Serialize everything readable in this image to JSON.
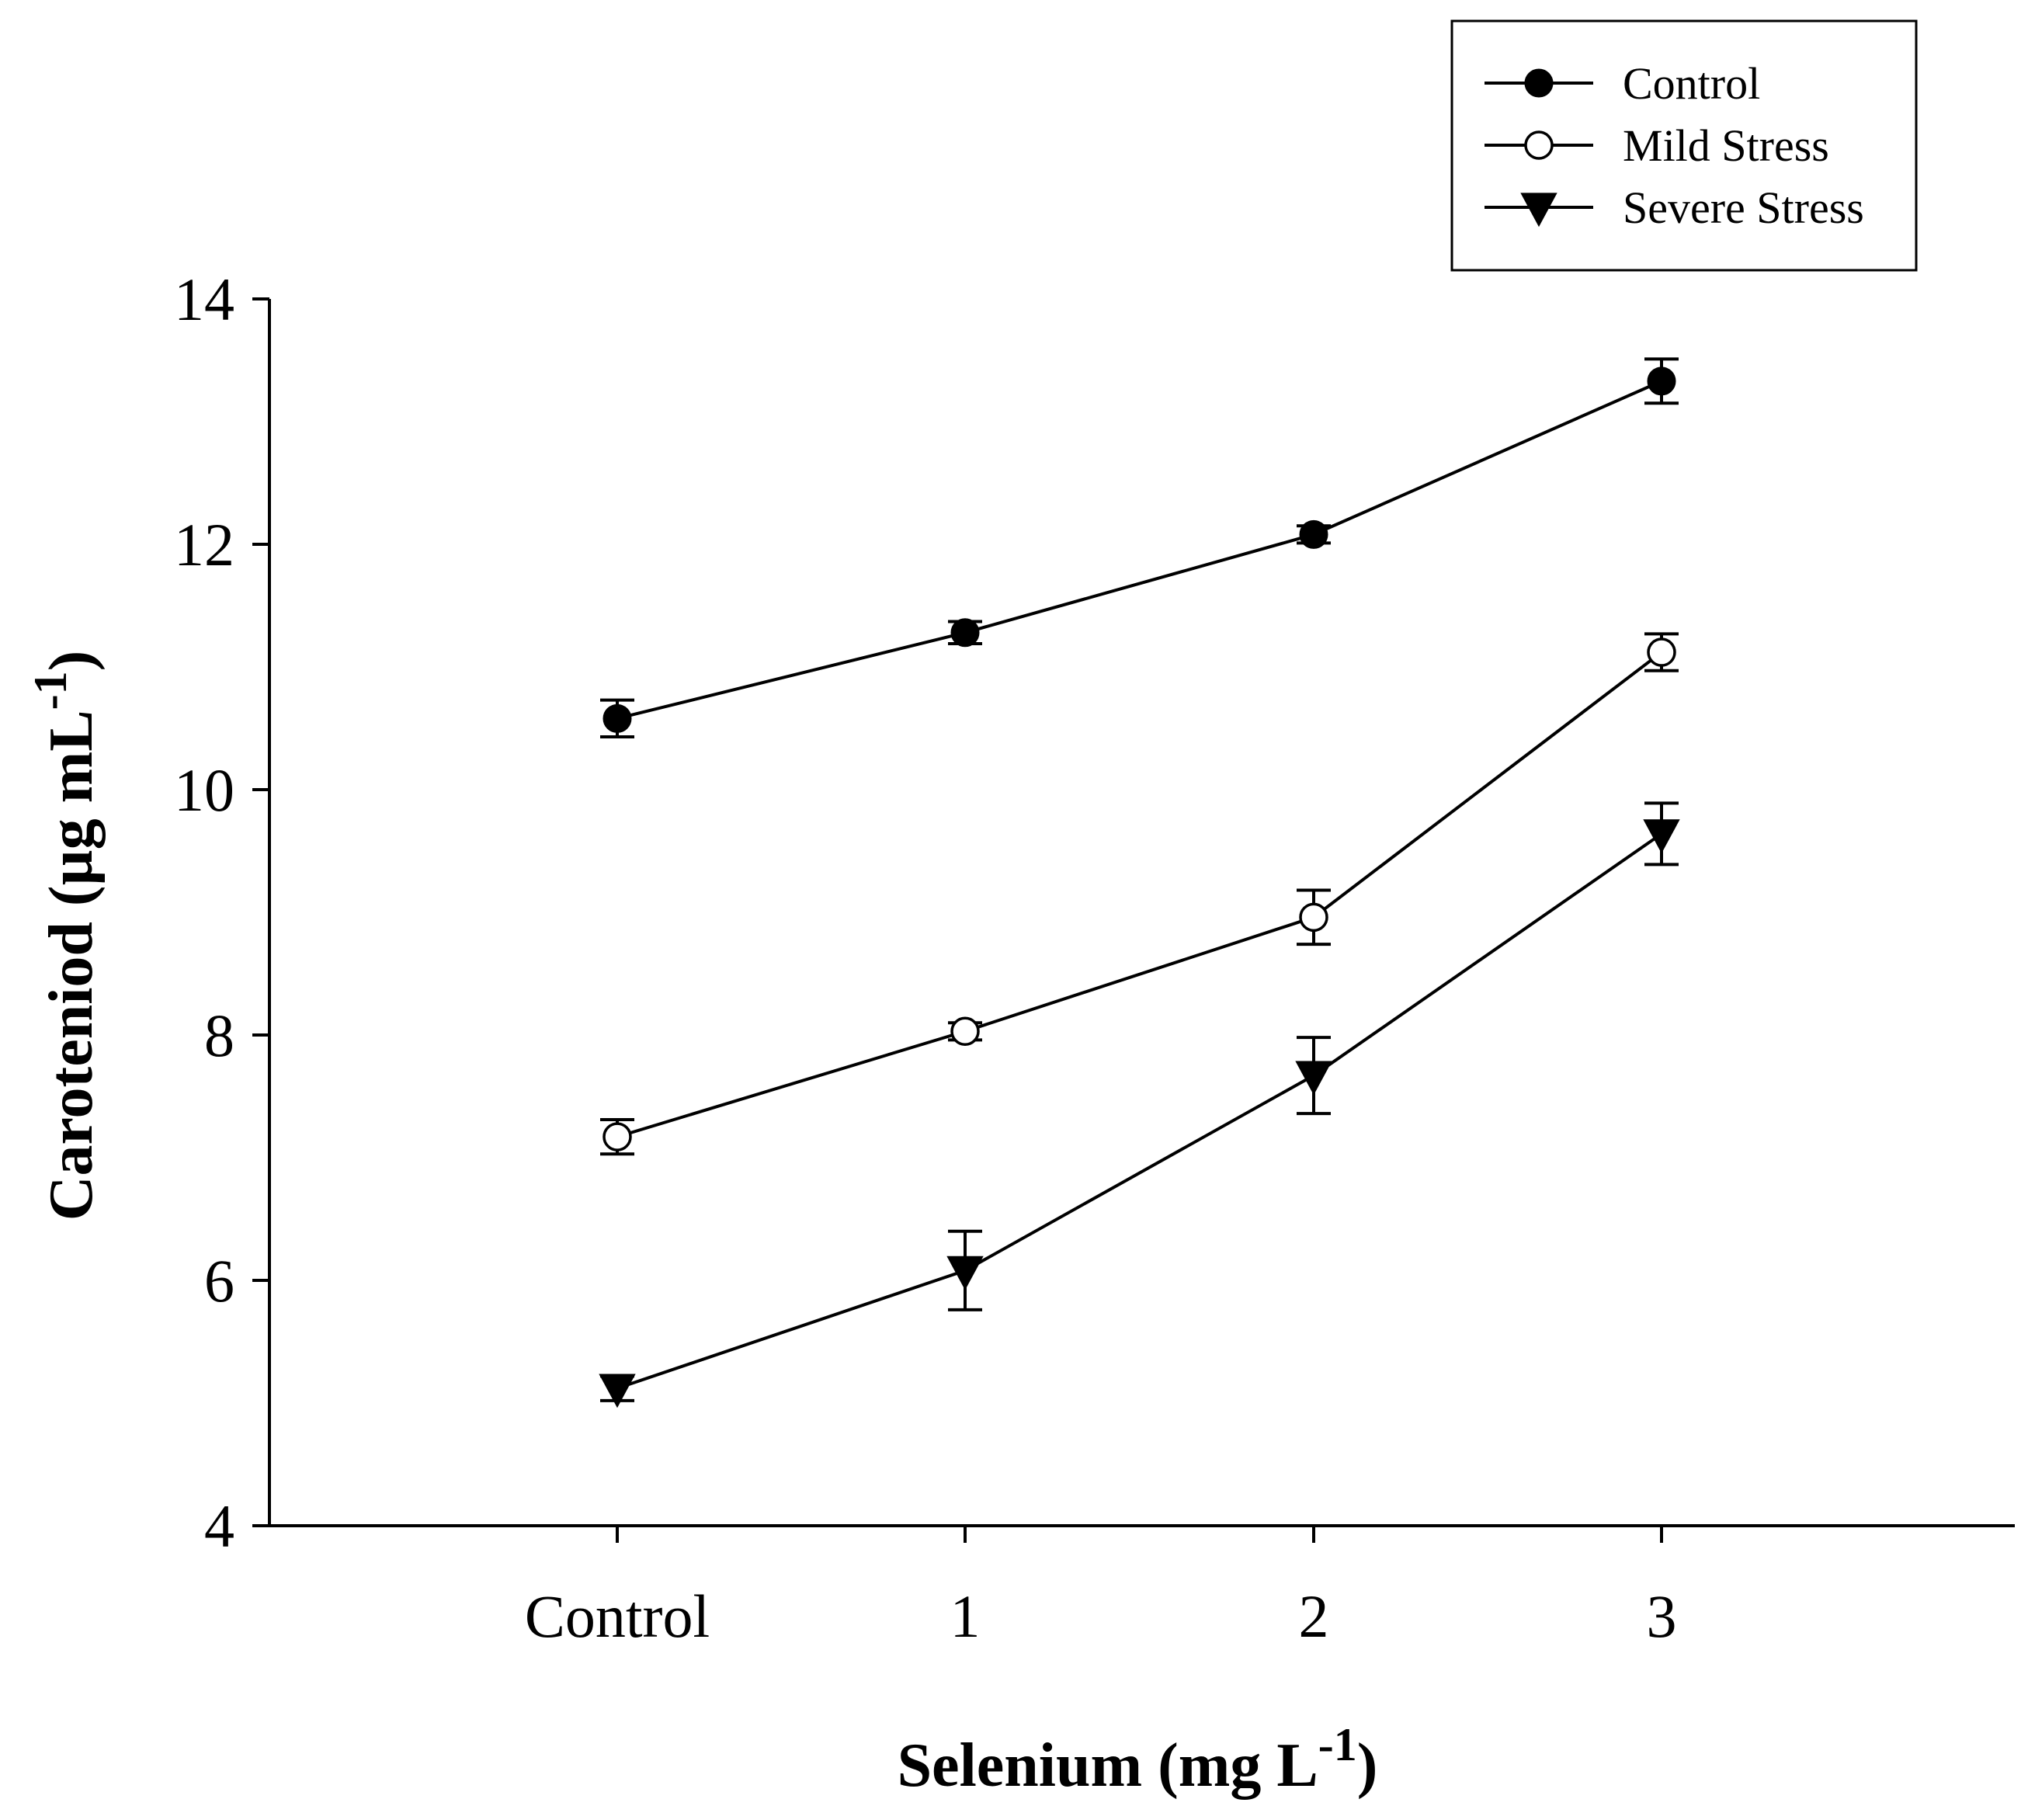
{
  "chart_data": {
    "type": "line",
    "title": "",
    "xlabel": "Selenium (mg L",
    "xlabel_superscript": "-1",
    "xlabel_suffix": ")",
    "ylabel": "Caroteniod (µg mL",
    "ylabel_superscript": "-1",
    "ylabel_suffix": ")",
    "categories": [
      "Control",
      "1",
      "2",
      "3"
    ],
    "ylim": [
      4,
      14
    ],
    "yticks": [
      4,
      6,
      8,
      10,
      12,
      14
    ],
    "grid": false,
    "legend_position": "top-right",
    "series": [
      {
        "name": "Control",
        "marker": "filled-circle",
        "values": [
          10.58,
          11.28,
          12.08,
          13.33
        ],
        "errors": [
          0.15,
          0.09,
          0.07,
          0.18
        ]
      },
      {
        "name": "Mild Stress",
        "marker": "open-circle",
        "values": [
          7.17,
          8.03,
          8.96,
          11.12
        ],
        "errors": [
          0.14,
          0.07,
          0.22,
          0.15
        ]
      },
      {
        "name": "Severe Stress",
        "marker": "filled-triangle-down",
        "values": [
          5.12,
          6.08,
          7.67,
          9.64
        ],
        "errors": [
          0.1,
          0.32,
          0.31,
          0.25
        ]
      }
    ]
  }
}
